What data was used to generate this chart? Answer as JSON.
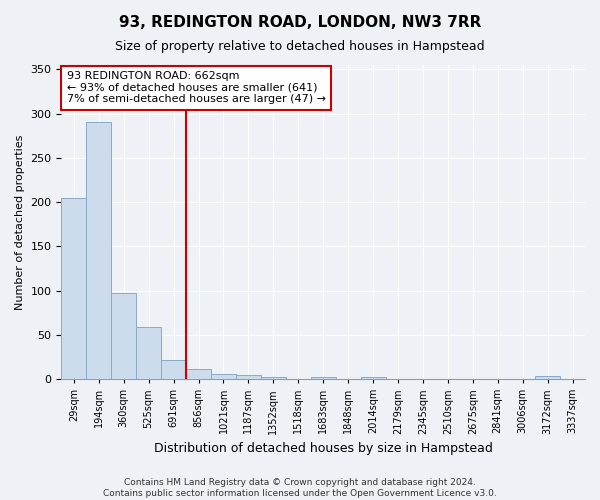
{
  "title1": "93, REDINGTON ROAD, LONDON, NW3 7RR",
  "title2": "Size of property relative to detached houses in Hampstead",
  "xlabel": "Distribution of detached houses by size in Hampstead",
  "ylabel": "Number of detached properties",
  "bar_labels": [
    "29sqm",
    "194sqm",
    "360sqm",
    "525sqm",
    "691sqm",
    "856sqm",
    "1021sqm",
    "1187sqm",
    "1352sqm",
    "1518sqm",
    "1683sqm",
    "1848sqm",
    "2014sqm",
    "2179sqm",
    "2345sqm",
    "2510sqm",
    "2675sqm",
    "2841sqm",
    "3006sqm",
    "3172sqm",
    "3337sqm"
  ],
  "bar_heights": [
    205,
    290,
    97,
    59,
    21,
    11,
    6,
    4,
    2,
    0,
    2,
    0,
    2,
    0,
    0,
    0,
    0,
    0,
    0,
    3,
    0
  ],
  "bar_color": "#cddcec",
  "bar_edge_color": "#8aaac8",
  "vline_x_index": 4,
  "vline_color": "#cc0000",
  "annotation_text": "93 REDINGTON ROAD: 662sqm\n← 93% of detached houses are smaller (641)\n7% of semi-detached houses are larger (47) →",
  "annotation_box_color": "#cc0000",
  "ylim": [
    0,
    355
  ],
  "yticks": [
    0,
    50,
    100,
    150,
    200,
    250,
    300,
    350
  ],
  "footer1": "Contains HM Land Registry data © Crown copyright and database right 2024.",
  "footer2": "Contains public sector information licensed under the Open Government Licence v3.0.",
  "bg_color": "#eef2f7",
  "grid_color": "#ffffff",
  "title1_fontsize": 11,
  "title2_fontsize": 9,
  "xlabel_fontsize": 9,
  "ylabel_fontsize": 8,
  "tick_fontsize": 7,
  "annotation_fontsize": 8,
  "footer_fontsize": 6.5
}
